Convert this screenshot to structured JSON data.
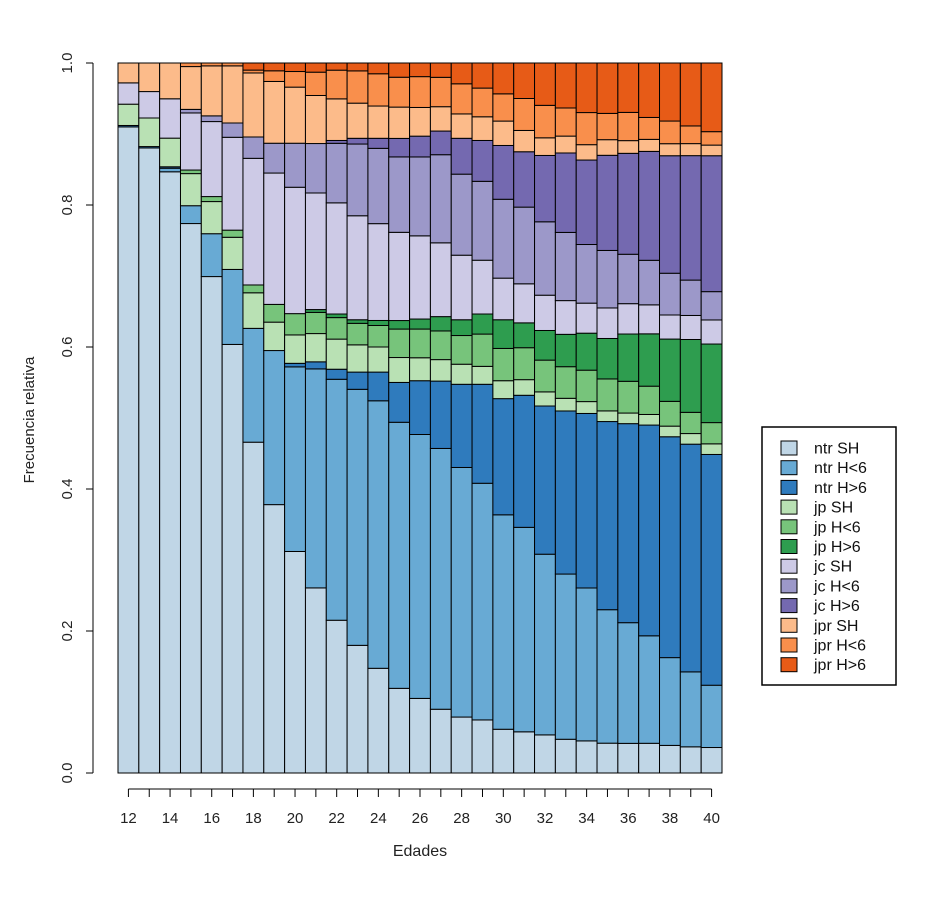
{
  "chart_data": {
    "type": "bar",
    "stacked": true,
    "title": "",
    "xlabel": "Edades",
    "ylabel": "Frecuencia relativa",
    "ylim": [
      0,
      1
    ],
    "y_ticks": [
      "0.0",
      "0.2",
      "0.4",
      "0.6",
      "0.8",
      "1.0"
    ],
    "x_tick_labels": [
      "12",
      "14",
      "16",
      "18",
      "20",
      "22",
      "24",
      "26",
      "28",
      "30",
      "32",
      "34",
      "36",
      "38",
      "40"
    ],
    "legend_position": "right",
    "categories": [
      "12",
      "13",
      "14",
      "15",
      "16",
      "17",
      "18",
      "19",
      "20",
      "21",
      "22",
      "23",
      "24",
      "25",
      "26",
      "27",
      "28",
      "29",
      "30",
      "31",
      "32",
      "33",
      "34",
      "35",
      "36",
      "37",
      "38",
      "39",
      "40"
    ],
    "series": [
      {
        "name": "ntr SH",
        "color": "#c0d6e6",
        "values": [
          0.91,
          0.875,
          0.84,
          0.77,
          0.695,
          0.6,
          0.465,
          0.378,
          0.312,
          0.262,
          0.213,
          0.178,
          0.146,
          0.119,
          0.104,
          0.089,
          0.078,
          0.074,
          0.061,
          0.058,
          0.054,
          0.048,
          0.046,
          0.042,
          0.042,
          0.042,
          0.039,
          0.037,
          0.036
        ]
      },
      {
        "name": "ntr H<6",
        "color": "#68aad4",
        "values": [
          0.0,
          0.0,
          0.005,
          0.025,
          0.06,
          0.105,
          0.16,
          0.217,
          0.26,
          0.31,
          0.336,
          0.357,
          0.373,
          0.374,
          0.368,
          0.364,
          0.348,
          0.33,
          0.299,
          0.288,
          0.256,
          0.235,
          0.219,
          0.188,
          0.171,
          0.152,
          0.124,
          0.106,
          0.088
        ]
      },
      {
        "name": "ntr H>6",
        "color": "#2f7bbd",
        "values": [
          0.002,
          0.002,
          0.002,
          0.0,
          0.0,
          0.0,
          0.0,
          0.0,
          0.005,
          0.01,
          0.014,
          0.024,
          0.04,
          0.056,
          0.075,
          0.094,
          0.116,
          0.138,
          0.162,
          0.186,
          0.21,
          0.232,
          0.25,
          0.265,
          0.282,
          0.298,
          0.312,
          0.322,
          0.326
        ]
      },
      {
        "name": "jp SH",
        "color": "#b9e1b4",
        "values": [
          0.03,
          0.04,
          0.04,
          0.045,
          0.045,
          0.045,
          0.05,
          0.04,
          0.04,
          0.04,
          0.042,
          0.038,
          0.035,
          0.035,
          0.032,
          0.03,
          0.028,
          0.025,
          0.025,
          0.022,
          0.02,
          0.018,
          0.017,
          0.015,
          0.015,
          0.015,
          0.015,
          0.015,
          0.015
        ]
      },
      {
        "name": "jp H<6",
        "color": "#77c47b",
        "values": [
          0.0,
          0.0,
          0.0,
          0.005,
          0.007,
          0.01,
          0.011,
          0.025,
          0.03,
          0.03,
          0.03,
          0.03,
          0.03,
          0.04,
          0.04,
          0.04,
          0.04,
          0.045,
          0.045,
          0.045,
          0.045,
          0.045,
          0.045,
          0.045,
          0.045,
          0.04,
          0.035,
          0.03,
          0.03
        ]
      },
      {
        "name": "jp H>6",
        "color": "#2e9d4f",
        "values": [
          0.0,
          0.0,
          0.0,
          0.0,
          0.0,
          0.0,
          0.0,
          0.0,
          0.0,
          0.004,
          0.005,
          0.005,
          0.007,
          0.012,
          0.014,
          0.02,
          0.022,
          0.028,
          0.04,
          0.035,
          0.042,
          0.046,
          0.053,
          0.057,
          0.067,
          0.074,
          0.088,
          0.103,
          0.111
        ]
      },
      {
        "name": "jc SH",
        "color": "#cdcae6",
        "values": [
          0.03,
          0.037,
          0.055,
          0.08,
          0.105,
          0.13,
          0.178,
          0.185,
          0.178,
          0.165,
          0.155,
          0.145,
          0.135,
          0.124,
          0.116,
          0.103,
          0.09,
          0.075,
          0.058,
          0.055,
          0.05,
          0.048,
          0.043,
          0.043,
          0.043,
          0.041,
          0.034,
          0.034,
          0.034
        ]
      },
      {
        "name": "jc H<6",
        "color": "#9c98c9",
        "values": [
          0.0,
          0.0,
          0.0,
          0.005,
          0.008,
          0.02,
          0.03,
          0.042,
          0.062,
          0.07,
          0.083,
          0.1,
          0.105,
          0.106,
          0.11,
          0.123,
          0.113,
          0.11,
          0.11,
          0.108,
          0.104,
          0.097,
          0.084,
          0.081,
          0.07,
          0.063,
          0.059,
          0.05,
          0.04
        ]
      },
      {
        "name": "jc H>6",
        "color": "#7469b0",
        "values": [
          0.0,
          0.0,
          0.0,
          0.0,
          0.0,
          0.0,
          0.0,
          0.0,
          0.0,
          0.0,
          0.004,
          0.008,
          0.014,
          0.026,
          0.029,
          0.033,
          0.05,
          0.057,
          0.075,
          0.078,
          0.094,
          0.113,
          0.121,
          0.134,
          0.143,
          0.154,
          0.166,
          0.176,
          0.192
        ]
      },
      {
        "name": "jpr SH",
        "color": "#fcbb8a",
        "values": [
          0.028,
          0.04,
          0.05,
          0.06,
          0.07,
          0.08,
          0.09,
          0.087,
          0.079,
          0.068,
          0.058,
          0.049,
          0.045,
          0.044,
          0.04,
          0.034,
          0.034,
          0.033,
          0.034,
          0.03,
          0.025,
          0.024,
          0.022,
          0.022,
          0.018,
          0.017,
          0.017,
          0.017,
          0.015
        ]
      },
      {
        "name": "jpr H<6",
        "color": "#f98f4c",
        "values": [
          0.0,
          0.0,
          0.0,
          0.005,
          0.004,
          0.004,
          0.004,
          0.015,
          0.022,
          0.033,
          0.04,
          0.045,
          0.045,
          0.042,
          0.043,
          0.041,
          0.042,
          0.04,
          0.038,
          0.045,
          0.046,
          0.04,
          0.046,
          0.037,
          0.04,
          0.031,
          0.032,
          0.025,
          0.019
        ]
      },
      {
        "name": "jpr H>6",
        "color": "#e75b17",
        "values": [
          0.0,
          0.0,
          0.0,
          0.0,
          0.0,
          0.0,
          0.01,
          0.011,
          0.012,
          0.013,
          0.01,
          0.011,
          0.015,
          0.02,
          0.019,
          0.02,
          0.029,
          0.035,
          0.043,
          0.05,
          0.06,
          0.064,
          0.071,
          0.071,
          0.07,
          0.077,
          0.082,
          0.089,
          0.097
        ]
      }
    ]
  }
}
